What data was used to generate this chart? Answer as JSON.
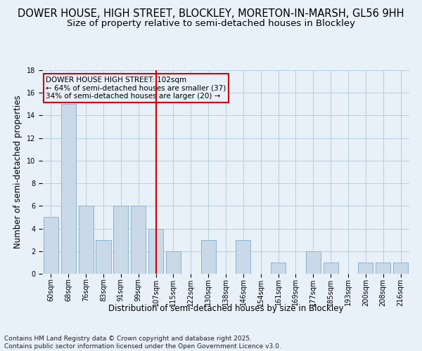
{
  "title": "DOWER HOUSE, HIGH STREET, BLOCKLEY, MORETON-IN-MARSH, GL56 9HH",
  "subtitle": "Size of property relative to semi-detached houses in Blockley",
  "xlabel": "Distribution of semi-detached houses by size in Blockley",
  "ylabel": "Number of semi-detached properties",
  "footnote": "Contains HM Land Registry data © Crown copyright and database right 2025.\nContains public sector information licensed under the Open Government Licence v3.0.",
  "categories": [
    "60sqm",
    "68sqm",
    "76sqm",
    "83sqm",
    "91sqm",
    "99sqm",
    "107sqm",
    "115sqm",
    "122sqm",
    "130sqm",
    "138sqm",
    "146sqm",
    "154sqm",
    "161sqm",
    "169sqm",
    "177sqm",
    "185sqm",
    "193sqm",
    "200sqm",
    "208sqm",
    "216sqm"
  ],
  "values": [
    5,
    15,
    6,
    3,
    6,
    6,
    4,
    2,
    0,
    3,
    0,
    3,
    0,
    1,
    0,
    2,
    1,
    0,
    1,
    1,
    1
  ],
  "bar_color": "#c9d9e8",
  "bar_edge_color": "#8ab4d0",
  "grid_color": "#b8cfe0",
  "bg_color": "#e8f0f8",
  "vline_x_index": 6,
  "vline_color": "#cc0000",
  "annotation_text": "DOWER HOUSE HIGH STREET: 102sqm\n← 64% of semi-detached houses are smaller (37)\n34% of semi-detached houses are larger (20) →",
  "annotation_box_color": "#cc0000",
  "ylim": [
    0,
    18
  ],
  "yticks": [
    0,
    2,
    4,
    6,
    8,
    10,
    12,
    14,
    16,
    18
  ],
  "title_fontsize": 10.5,
  "subtitle_fontsize": 9.5,
  "label_fontsize": 8.5,
  "tick_fontsize": 7,
  "footnote_fontsize": 6.5,
  "ann_fontsize": 7.5
}
